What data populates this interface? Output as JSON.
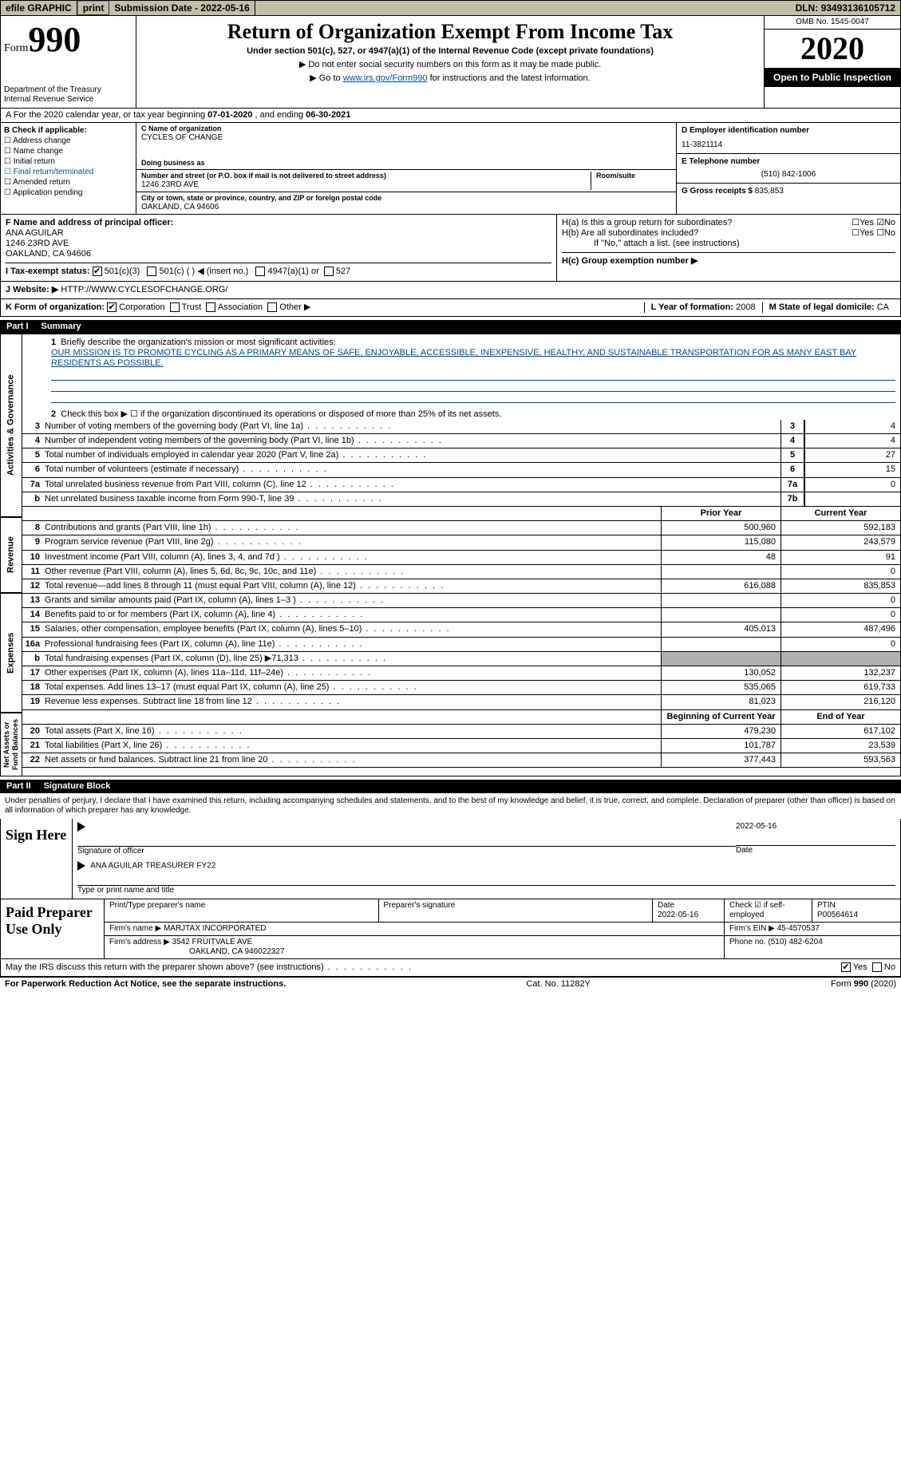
{
  "topbar": {
    "efile": "efile GRAPHIC",
    "print_btn": "print",
    "submission_label": "Submission Date - ",
    "submission_date": "2022-05-16",
    "dln_label": "DLN: ",
    "dln": "93493136105712"
  },
  "header": {
    "form_prefix": "Form",
    "form_number": "990",
    "dept": "Department of the Treasury\nInternal Revenue Service",
    "title": "Return of Organization Exempt From Income Tax",
    "sub": "Under section 501(c), 527, or 4947(a)(1) of the Internal Revenue Code (except private foundations)",
    "note1": "▶ Do not enter social security numbers on this form as it may be made public.",
    "note2_pre": "▶ Go to ",
    "note2_link": "www.irs.gov/Form990",
    "note2_post": " for instructions and the latest information.",
    "omb": "OMB No. 1545-0047",
    "year": "2020",
    "open": "Open to Public Inspection"
  },
  "section_a": {
    "text_pre": "A For the 2020 calendar year, or tax year beginning ",
    "begin": "07-01-2020",
    "mid": " , and ending ",
    "end": "06-30-2021"
  },
  "col_b": {
    "title": "B Check if applicable:",
    "items": [
      "Address change",
      "Name change",
      "Initial return",
      "Final return/terminated",
      "Amended return",
      "Application pending"
    ]
  },
  "col_c": {
    "name_lbl": "C Name of organization",
    "name": "CYCLES OF CHANGE",
    "dba_lbl": "Doing business as",
    "addr_lbl": "Number and street (or P.O. box if mail is not delivered to street address)",
    "addr": "1246 23RD AVE",
    "room_lbl": "Room/suite",
    "city_lbl": "City or town, state or province, country, and ZIP or foreign postal code",
    "city": "OAKLAND, CA  94606"
  },
  "col_d": {
    "ein_lbl": "D Employer identification number",
    "ein": "11-3821114",
    "phone_lbl": "E Telephone number",
    "phone": "(510) 842-1006",
    "gross_lbl": "G Gross receipts $",
    "gross": "835,853"
  },
  "f": {
    "lbl": "F Name and address of principal officer:",
    "name": "ANA AGUILAR",
    "addr": "1246 23RD AVE",
    "city": "OAKLAND, CA  94606"
  },
  "h": {
    "a": "H(a)  Is this a group return for subordinates?",
    "b": "H(b)  Are all subordinates included?",
    "note": "If \"No,\" attach a list. (see instructions)",
    "c": "H(c)  Group exemption number ▶"
  },
  "tax_status_lbl": "I  Tax-exempt status:",
  "website_lbl": "J  Website: ▶",
  "website": "HTTP://WWW.CYCLESOFCHANGE.ORG/",
  "k_lbl": "K Form of organization:",
  "l_lbl": "L Year of formation: ",
  "l_val": "2008",
  "m_lbl": "M State of legal domicile: ",
  "m_val": "CA",
  "part1": {
    "num": "Part I",
    "title": "Summary",
    "line1_lbl": "Briefly describe the organization's mission or most significant activities:",
    "mission": "OUR MISSION IS TO PROMOTE CYCLING AS A PRIMARY MEANS OF SAFE, ENJOYABLE, ACCESSIBLE, INEXPENSIVE, HEALTHY, AND SUSTAINABLE TRANSPORTATION FOR AS MANY EAST BAY RESIDENTS AS POSSIBLE.",
    "line2": "Check this box ▶ ☐ if the organization discontinued its operations or disposed of more than 25% of its net assets.",
    "lines_small": [
      {
        "n": "3",
        "t": "Number of voting members of the governing body (Part VI, line 1a)",
        "c": "3",
        "v": "4"
      },
      {
        "n": "4",
        "t": "Number of independent voting members of the governing body (Part VI, line 1b)",
        "c": "4",
        "v": "4"
      },
      {
        "n": "5",
        "t": "Total number of individuals employed in calendar year 2020 (Part V, line 2a)",
        "c": "5",
        "v": "27"
      },
      {
        "n": "6",
        "t": "Total number of volunteers (estimate if necessary)",
        "c": "6",
        "v": "15"
      },
      {
        "n": "7a",
        "t": "Total unrelated business revenue from Part VIII, column (C), line 12",
        "c": "7a",
        "v": "0"
      },
      {
        "n": "b",
        "t": "Net unrelated business taxable income from Form 990-T, line 39",
        "c": "7b",
        "v": ""
      }
    ],
    "hdr_prior": "Prior Year",
    "hdr_current": "Current Year",
    "revenue": [
      {
        "n": "8",
        "t": "Contributions and grants (Part VIII, line 1h)",
        "p": "500,960",
        "c": "592,183"
      },
      {
        "n": "9",
        "t": "Program service revenue (Part VIII, line 2g)",
        "p": "115,080",
        "c": "243,579"
      },
      {
        "n": "10",
        "t": "Investment income (Part VIII, column (A), lines 3, 4, and 7d )",
        "p": "48",
        "c": "91"
      },
      {
        "n": "11",
        "t": "Other revenue (Part VIII, column (A), lines 5, 6d, 8c, 9c, 10c, and 11e)",
        "p": "",
        "c": "0"
      },
      {
        "n": "12",
        "t": "Total revenue—add lines 8 through 11 (must equal Part VIII, column (A), line 12)",
        "p": "616,088",
        "c": "835,853"
      }
    ],
    "expenses": [
      {
        "n": "13",
        "t": "Grants and similar amounts paid (Part IX, column (A), lines 1–3 )",
        "p": "",
        "c": "0"
      },
      {
        "n": "14",
        "t": "Benefits paid to or for members (Part IX, column (A), line 4)",
        "p": "",
        "c": "0"
      },
      {
        "n": "15",
        "t": "Salaries, other compensation, employee benefits (Part IX, column (A), lines 5–10)",
        "p": "405,013",
        "c": "487,496"
      },
      {
        "n": "16a",
        "t": "Professional fundraising fees (Part IX, column (A), line 11e)",
        "p": "",
        "c": "0"
      },
      {
        "n": "b",
        "t": "Total fundraising expenses (Part IX, column (D), line 25) ▶71,313",
        "p": "shade",
        "c": "shade"
      },
      {
        "n": "17",
        "t": "Other expenses (Part IX, column (A), lines 11a–11d, 11f–24e)",
        "p": "130,052",
        "c": "132,237"
      },
      {
        "n": "18",
        "t": "Total expenses. Add lines 13–17 (must equal Part IX, column (A), line 25)",
        "p": "535,065",
        "c": "619,733"
      },
      {
        "n": "19",
        "t": "Revenue less expenses. Subtract line 18 from line 12",
        "p": "81,023",
        "c": "216,120"
      }
    ],
    "hdr_begin": "Beginning of Current Year",
    "hdr_end": "End of Year",
    "netassets": [
      {
        "n": "20",
        "t": "Total assets (Part X, line 16)",
        "p": "479,230",
        "c": "617,102"
      },
      {
        "n": "21",
        "t": "Total liabilities (Part X, line 26)",
        "p": "101,787",
        "c": "23,539"
      },
      {
        "n": "22",
        "t": "Net assets or fund balances. Subtract line 21 from line 20",
        "p": "377,443",
        "c": "593,563"
      }
    ],
    "side_gov": "Activities & Governance",
    "side_rev": "Revenue",
    "side_exp": "Expenses",
    "side_net": "Net Assets or Fund Balances"
  },
  "part2": {
    "num": "Part II",
    "title": "Signature Block",
    "text": "Under penalties of perjury, I declare that I have examined this return, including accompanying schedules and statements, and to the best of my knowledge and belief, it is true, correct, and complete. Declaration of preparer (other than officer) is based on all information of which preparer has any knowledge.",
    "sign_here": "Sign Here",
    "sig_officer": "Signature of officer",
    "sig_date": "2022-05-16",
    "date_lbl": "Date",
    "officer_name": "ANA AGUILAR  TREASURER FY22",
    "type_name": "Type or print name and title",
    "paid": "Paid Preparer Use Only",
    "prep_name_lbl": "Print/Type preparer's name",
    "prep_sig_lbl": "Preparer's signature",
    "prep_date_lbl": "Date",
    "prep_date": "2022-05-16",
    "prep_check": "Check ☑ if self-employed",
    "ptin_lbl": "PTIN",
    "ptin": "P00564614",
    "firm_name_lbl": "Firm's name    ▶",
    "firm_name": "MARJTAX INCORPORATED",
    "firm_ein_lbl": "Firm's EIN ▶",
    "firm_ein": "45-4570537",
    "firm_addr_lbl": "Firm's address ▶",
    "firm_addr": "3542 FRUITVALE AVE",
    "firm_city": "OAKLAND, CA  946022327",
    "firm_phone_lbl": "Phone no. ",
    "firm_phone": "(510) 482-6204",
    "discuss": "May the IRS discuss this return with the preparer shown above? (see instructions)"
  },
  "footer": {
    "left": "For Paperwork Reduction Act Notice, see the separate instructions.",
    "mid": "Cat. No. 11282Y",
    "right": "Form 990 (2020)"
  }
}
